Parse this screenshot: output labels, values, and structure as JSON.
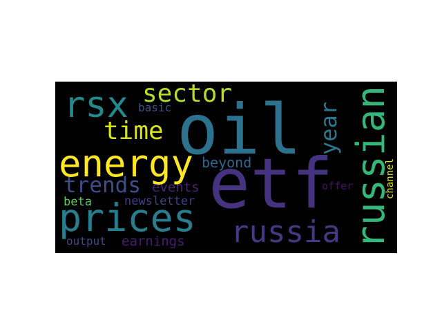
{
  "wordcloud": {
    "words": [
      {
        "text": "oil",
        "color": "#2c718e"
      },
      {
        "text": "etf",
        "color": "#46337f"
      },
      {
        "text": "russian",
        "color": "#35b779"
      },
      {
        "text": "energy",
        "color": "#fde725"
      },
      {
        "text": "prices",
        "color": "#287d8e"
      },
      {
        "text": "rsx",
        "color": "#238a8d"
      },
      {
        "text": "sector",
        "color": "#b5de2b"
      },
      {
        "text": "time",
        "color": "#d8e219"
      },
      {
        "text": "year",
        "color": "#2a788e"
      },
      {
        "text": "russia",
        "color": "#443983"
      },
      {
        "text": "trends",
        "color": "#3e4c8a"
      },
      {
        "text": "basic",
        "color": "#3b528b"
      },
      {
        "text": "beyond",
        "color": "#31688e"
      },
      {
        "text": "events",
        "color": "#482475"
      },
      {
        "text": "channel",
        "color": "#e5e419"
      },
      {
        "text": "offer",
        "color": "#471063"
      },
      {
        "text": "beta",
        "color": "#5ec962"
      },
      {
        "text": "newsletter",
        "color": "#423f85"
      },
      {
        "text": "output",
        "color": "#3f4889"
      },
      {
        "text": "earnings",
        "color": "#481b6d"
      }
    ]
  }
}
